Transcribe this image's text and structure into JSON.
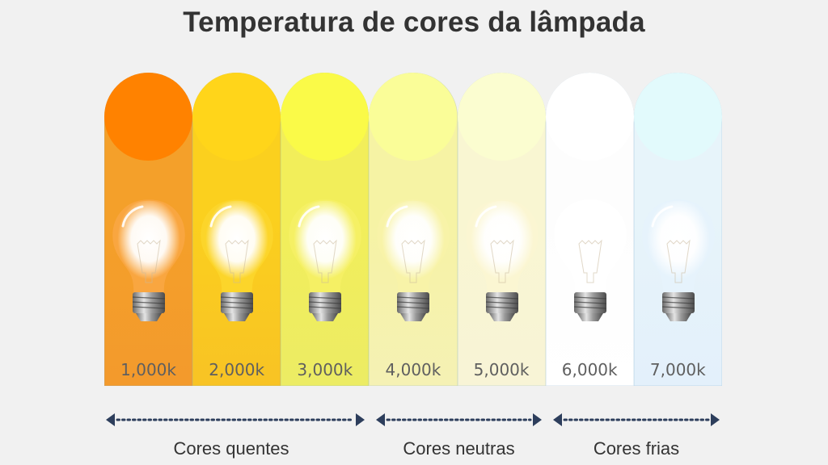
{
  "title": "Temperatura de cores da lâmpada",
  "columns": [
    {
      "label": "1,000k",
      "disc": "#ff8200",
      "top": "#f4a02a",
      "bottom": "#f39a2c",
      "glass": "#f9a640"
    },
    {
      "label": "2,000k",
      "disc": "#ffd51a",
      "top": "#fbd01e",
      "bottom": "#f8c324",
      "glass": "#fcd52a"
    },
    {
      "label": "3,000k",
      "disc": "#fafa48",
      "top": "#f2ee5a",
      "bottom": "#ecec64",
      "glass": "#f5f064"
    },
    {
      "label": "4,000k",
      "disc": "#fafd98",
      "top": "#f6f3a4",
      "bottom": "#f5f1b4",
      "glass": "#f8f3a8"
    },
    {
      "label": "5,000k",
      "disc": "#fbfdd0",
      "top": "#f9f6d2",
      "bottom": "#f8f4d6",
      "glass": "#fbf6d2"
    },
    {
      "label": "6,000k",
      "disc": "#ffffff",
      "top": "#fdfdfd",
      "bottom": "#ffffff",
      "glass": "#ffffff"
    },
    {
      "label": "7,000k",
      "disc": "#e2fafc",
      "top": "#e7f4fa",
      "bottom": "#e3f0fb",
      "glass": "#e6f3fc"
    }
  ],
  "groups": [
    {
      "label": "Cores quentes",
      "range": "1,000k – 3,000k"
    },
    {
      "label": "Cores neutras",
      "range": "4,000k – 5,000k"
    },
    {
      "label": "Cores frias",
      "range": "6,000k – 7,000k"
    }
  ],
  "colors": {
    "arrow": "#2d3e5c",
    "title": "#333333",
    "label": "#5f5f5f"
  }
}
